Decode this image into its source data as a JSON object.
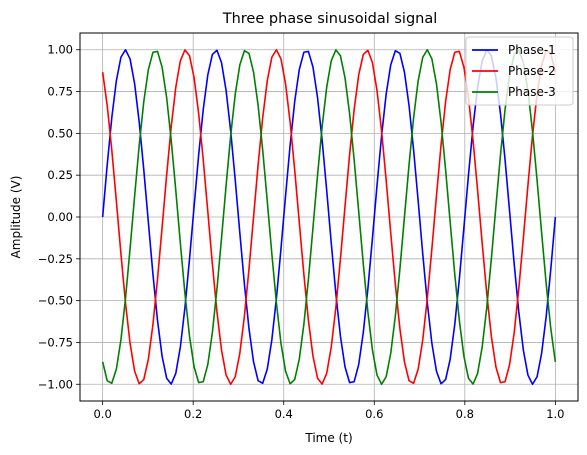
{
  "chart_data": {
    "type": "line",
    "title": "Three phase sinusoidal signal",
    "xlabel": "Time (t)",
    "ylabel": "Amplitude (V)",
    "xlim": [
      -0.05,
      1.05
    ],
    "ylim": [
      -1.1,
      1.1
    ],
    "x_ticks": [
      0.0,
      0.2,
      0.4,
      0.6,
      0.8,
      1.0
    ],
    "x_tick_labels": [
      "0.0",
      "0.2",
      "0.4",
      "0.6",
      "0.8",
      "1.0"
    ],
    "y_ticks": [
      -1.0,
      -0.75,
      -0.5,
      -0.25,
      0.0,
      0.25,
      0.5,
      0.75,
      1.0
    ],
    "y_tick_labels": [
      "−1.00",
      "−0.75",
      "−0.50",
      "−0.25",
      "0.00",
      "0.25",
      "0.50",
      "0.75",
      "1.00"
    ],
    "grid": true,
    "legend_position": "top-right",
    "frequency_hz": 5,
    "num_points": 100,
    "series": [
      {
        "name": "Phase-1",
        "color": "#0000ff",
        "phase_deg": 0
      },
      {
        "name": "Phase-2",
        "color": "#ff0000",
        "phase_deg": 120
      },
      {
        "name": "Phase-3",
        "color": "#008000",
        "phase_deg": 240
      }
    ]
  }
}
